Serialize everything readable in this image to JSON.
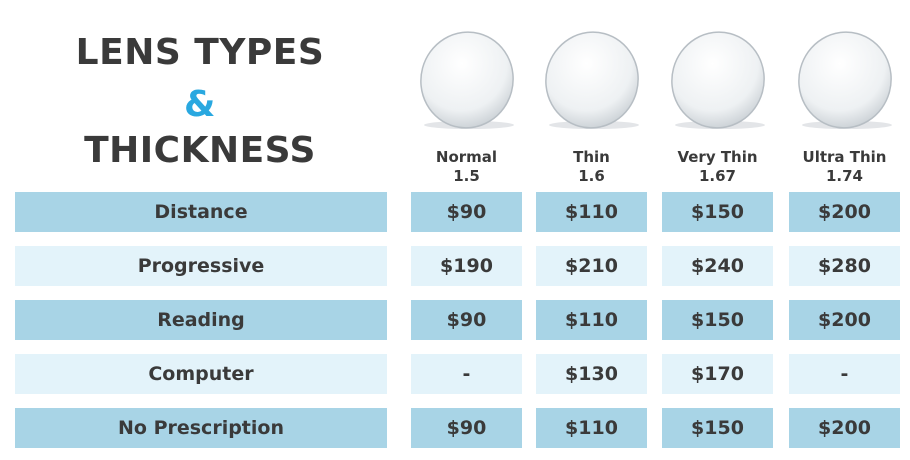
{
  "header": {
    "title_line1": "LENS TYPES",
    "ampersand": "&",
    "title_line2": "THICKNESS"
  },
  "table": {
    "columns": [
      {
        "name": "Normal",
        "index": "1.5"
      },
      {
        "name": "Thin",
        "index": "1.6"
      },
      {
        "name": "Very Thin",
        "index": "1.67"
      },
      {
        "name": "Ultra Thin",
        "index": "1.74"
      }
    ],
    "rows": [
      {
        "label": "Distance",
        "prices": [
          "$90",
          "$110",
          "$150",
          "$200"
        ]
      },
      {
        "label": "Progressive",
        "prices": [
          "$190",
          "$210",
          "$240",
          "$280"
        ]
      },
      {
        "label": "Reading",
        "prices": [
          "$90",
          "$110",
          "$150",
          "$200"
        ]
      },
      {
        "label": "Computer",
        "prices": [
          "-",
          "$130",
          "$170",
          "-"
        ]
      },
      {
        "label": "No Prescription",
        "prices": [
          "$90",
          "$110",
          "$150",
          "$200"
        ]
      }
    ]
  }
}
